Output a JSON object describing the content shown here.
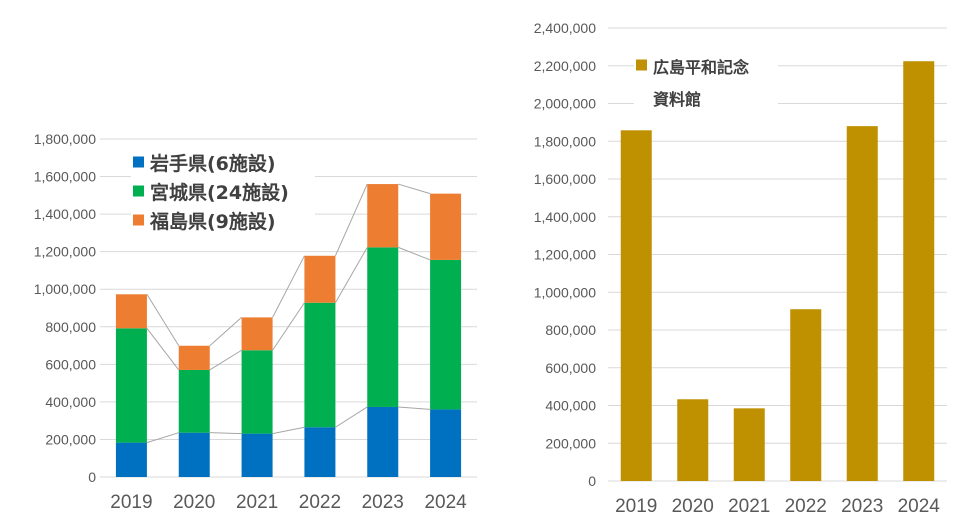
{
  "chart_data": [
    {
      "type": "bar",
      "stacked": true,
      "title": "",
      "xlabel": "",
      "ylabel": "",
      "categories": [
        "2019",
        "2020",
        "2021",
        "2022",
        "2023",
        "2024"
      ],
      "series": [
        {
          "name": "岩手県(6施設)",
          "color": "#0070C0",
          "values": [
            183000,
            236000,
            231000,
            265000,
            373000,
            360000
          ]
        },
        {
          "name": "宮城県(24施設)",
          "color": "#00B050",
          "values": [
            609000,
            334000,
            444000,
            663000,
            850000,
            796000
          ]
        },
        {
          "name": "福島県(9施設)",
          "color": "#ED7D31",
          "values": [
            181000,
            129000,
            175000,
            250000,
            337000,
            353000
          ]
        }
      ],
      "totals": [
        973000,
        699000,
        850000,
        1178000,
        1560000,
        1509000
      ],
      "ylim": [
        0,
        1800000
      ],
      "yticks": [
        "0",
        "200,000",
        "400,000",
        "600,000",
        "800,000",
        "1,000,000",
        "1,200,000",
        "1,400,000",
        "1,600,000",
        "1,800,000"
      ],
      "grid": true,
      "series_lines": true,
      "legend": "top-left"
    },
    {
      "type": "bar",
      "title": "",
      "xlabel": "",
      "ylabel": "",
      "categories": [
        "2019",
        "2020",
        "2021",
        "2022",
        "2023",
        "2024"
      ],
      "series": [
        {
          "name": "広島平和記念資料館",
          "name_lines": [
            "広島平和記念",
            "資料館"
          ],
          "color": "#BF9000",
          "values": [
            1858000,
            433000,
            385000,
            910000,
            1880000,
            2224000
          ]
        }
      ],
      "ylim": [
        0,
        2400000
      ],
      "yticks": [
        "0",
        "200,000",
        "400,000",
        "600,000",
        "800,000",
        "1,000,000",
        "1,200,000",
        "1,400,000",
        "1,600,000",
        "1,800,000",
        "2,000,000",
        "2,200,000",
        "2,400,000"
      ],
      "grid": true,
      "legend": "top-left"
    }
  ],
  "colors": {
    "text": "#595959",
    "grid": "#D9D9D9",
    "connector": "#A6A6A6"
  }
}
